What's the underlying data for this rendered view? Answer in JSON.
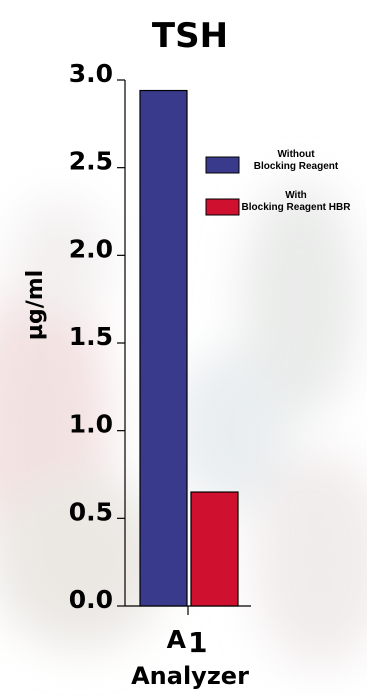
{
  "chart_data": {
    "type": "bar",
    "title": "TSH",
    "ylabel": "µg/ml",
    "xlabel": "Analyzer",
    "categories": [
      "A1"
    ],
    "ylim": [
      0,
      3.0
    ],
    "yticks": [
      "0.0",
      "0.5",
      "1.0",
      "1.5",
      "2.0",
      "2.5",
      "3.0"
    ],
    "legend_position": "right",
    "grid": false,
    "series": [
      {
        "name": [
          "Without",
          "Blocking Reagent"
        ],
        "values": [
          2.94
        ],
        "color": "#3a3a8c"
      },
      {
        "name": [
          "With",
          "Blocking Reagent HBR"
        ],
        "values": [
          0.65
        ],
        "color": "#d0102f"
      }
    ]
  }
}
